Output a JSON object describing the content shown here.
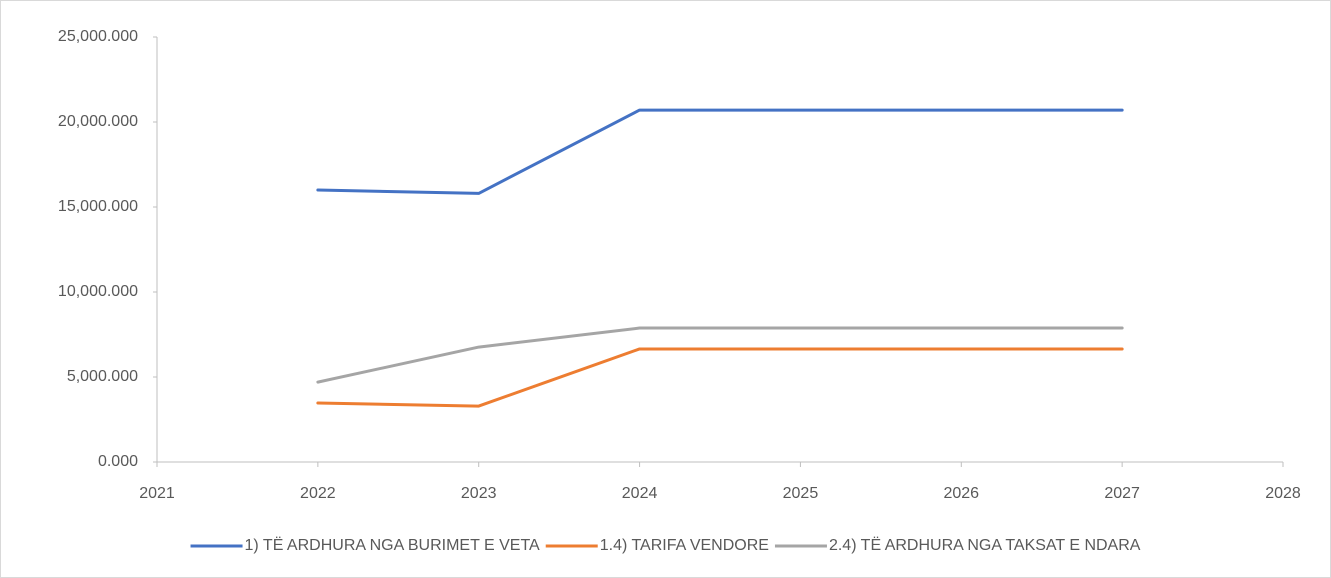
{
  "chart_data": {
    "type": "line",
    "x": [
      2022,
      2023,
      2024,
      2025,
      2026,
      2027
    ],
    "series": [
      {
        "name": "1) TË ARDHURA NGA BURIMET E VETA",
        "color": "#4472c4",
        "values": [
          16000,
          15800,
          20700,
          20700,
          20700,
          20700
        ]
      },
      {
        "name": "1.4) TARIFA VENDORE",
        "color": "#ed7d31",
        "values": [
          3470,
          3290,
          6650,
          6650,
          6650,
          6650
        ]
      },
      {
        "name": "2.4) TË ARDHURA NGA TAKSAT E NDARA",
        "color": "#a5a5a5",
        "values": [
          4700,
          6760,
          7880,
          7880,
          7880,
          7880
        ]
      }
    ],
    "xlim": [
      2021,
      2028
    ],
    "xticks": [
      2021,
      2022,
      2023,
      2024,
      2025,
      2026,
      2027,
      2028
    ],
    "ylim": [
      0,
      25000
    ],
    "yticks": [
      {
        "value": 0,
        "label": "0.000"
      },
      {
        "value": 5000,
        "label": "5,000.000"
      },
      {
        "value": 10000,
        "label": "10,000.000"
      },
      {
        "value": 15000,
        "label": "15,000.000"
      },
      {
        "value": 20000,
        "label": "20,000.000"
      },
      {
        "value": 25000,
        "label": "25,000.000"
      }
    ],
    "legend": "bottom"
  }
}
